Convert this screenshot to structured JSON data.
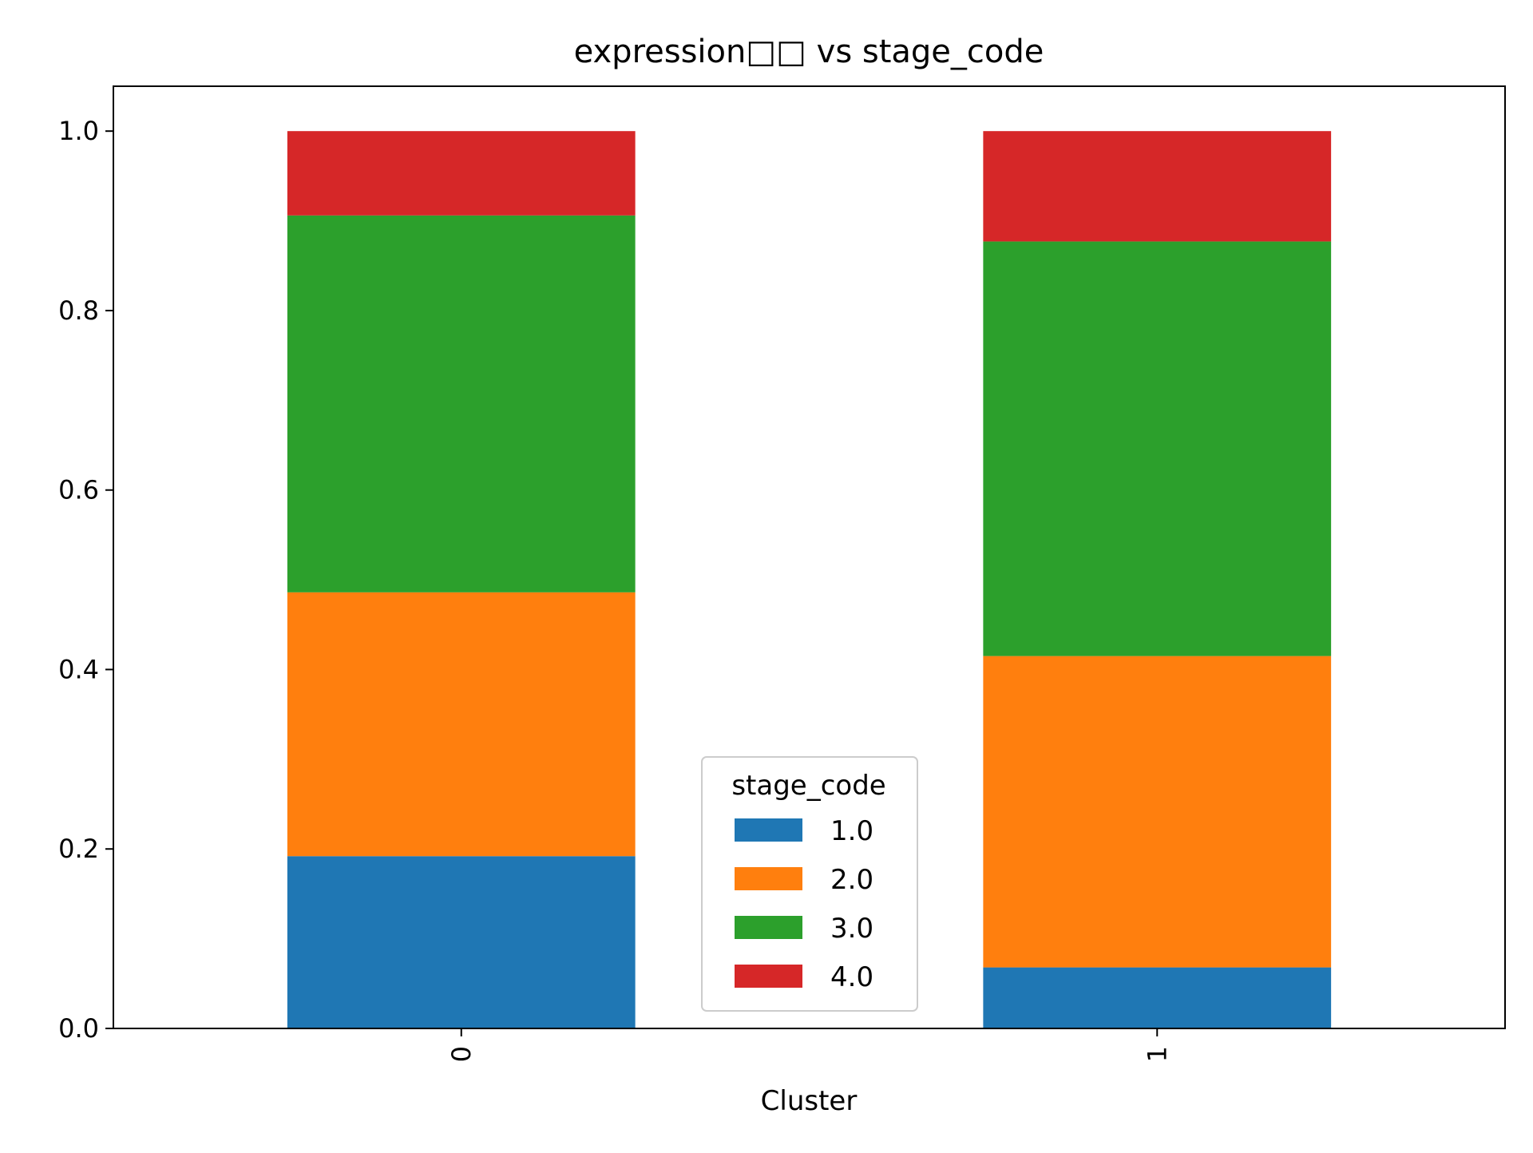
{
  "chart_data": {
    "type": "bar",
    "stacked": true,
    "title": "expression□□ vs stage_code",
    "xlabel": "Cluster",
    "ylabel": "",
    "categories": [
      "0",
      "1"
    ],
    "ylim": [
      0,
      1.05
    ],
    "yticks": [
      "0.0",
      "0.2",
      "0.4",
      "0.6",
      "0.8",
      "1.0"
    ],
    "legend": {
      "title": "stage_code",
      "position": "lower center"
    },
    "series": [
      {
        "name": "1.0",
        "color": "#1f77b4",
        "values": [
          0.192,
          0.068
        ]
      },
      {
        "name": "2.0",
        "color": "#ff7f0e",
        "values": [
          0.294,
          0.347
        ]
      },
      {
        "name": "3.0",
        "color": "#2ca02c",
        "values": [
          0.42,
          0.462
        ]
      },
      {
        "name": "4.0",
        "color": "#d62728",
        "values": [
          0.094,
          0.123
        ]
      }
    ],
    "grid": false
  }
}
